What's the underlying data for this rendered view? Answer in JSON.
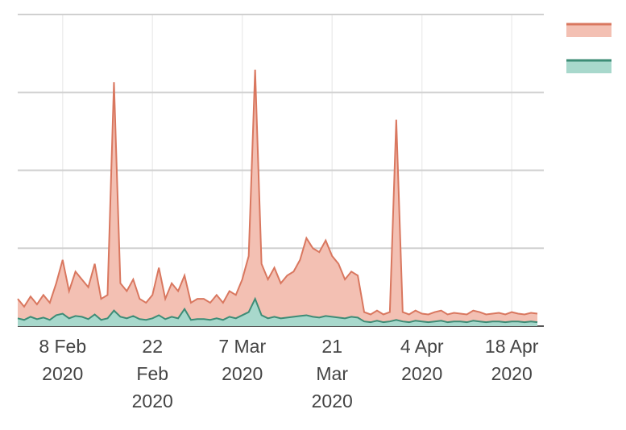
{
  "chart_data": {
    "type": "area",
    "x": [
      "2020-02-01",
      "2020-02-02",
      "2020-02-03",
      "2020-02-04",
      "2020-02-05",
      "2020-02-06",
      "2020-02-07",
      "2020-02-08",
      "2020-02-09",
      "2020-02-10",
      "2020-02-11",
      "2020-02-12",
      "2020-02-13",
      "2020-02-14",
      "2020-02-15",
      "2020-02-16",
      "2020-02-17",
      "2020-02-18",
      "2020-02-19",
      "2020-02-20",
      "2020-02-21",
      "2020-02-22",
      "2020-02-23",
      "2020-02-24",
      "2020-02-25",
      "2020-02-26",
      "2020-02-27",
      "2020-02-28",
      "2020-02-29",
      "2020-03-01",
      "2020-03-02",
      "2020-03-03",
      "2020-03-04",
      "2020-03-05",
      "2020-03-06",
      "2020-03-07",
      "2020-03-08",
      "2020-03-09",
      "2020-03-10",
      "2020-03-11",
      "2020-03-12",
      "2020-03-13",
      "2020-03-14",
      "2020-03-15",
      "2020-03-16",
      "2020-03-17",
      "2020-03-18",
      "2020-03-19",
      "2020-03-20",
      "2020-03-21",
      "2020-03-22",
      "2020-03-23",
      "2020-03-24",
      "2020-03-25",
      "2020-03-26",
      "2020-03-27",
      "2020-03-28",
      "2020-03-29",
      "2020-03-30",
      "2020-03-31",
      "2020-04-01",
      "2020-04-02",
      "2020-04-03",
      "2020-04-04",
      "2020-04-05",
      "2020-04-06",
      "2020-04-07",
      "2020-04-08",
      "2020-04-09",
      "2020-04-10",
      "2020-04-11",
      "2020-04-12",
      "2020-04-13",
      "2020-04-14",
      "2020-04-15",
      "2020-04-16",
      "2020-04-17",
      "2020-04-18",
      "2020-04-19",
      "2020-04-20",
      "2020-04-21",
      "2020-04-22"
    ],
    "series": [
      {
        "color": "#d9775f",
        "fill": "#f3c0b3",
        "values": [
          35,
          25,
          38,
          28,
          40,
          30,
          55,
          85,
          45,
          70,
          60,
          50,
          80,
          35,
          40,
          313,
          55,
          45,
          60,
          35,
          30,
          40,
          75,
          35,
          55,
          45,
          65,
          30,
          35,
          35,
          30,
          40,
          30,
          45,
          40,
          60,
          90,
          329,
          80,
          60,
          75,
          55,
          65,
          70,
          85,
          113,
          100,
          95,
          110,
          90,
          80,
          60,
          70,
          65,
          18,
          15,
          20,
          15,
          18,
          265,
          18,
          15,
          20,
          16,
          15,
          18,
          20,
          15,
          17,
          16,
          15,
          20,
          18,
          15,
          16,
          17,
          15,
          18,
          16,
          15,
          17,
          16
        ]
      },
      {
        "color": "#3d8c76",
        "fill": "#a8d8cc",
        "values": [
          10,
          8,
          12,
          9,
          11,
          8,
          14,
          16,
          10,
          13,
          12,
          9,
          15,
          8,
          10,
          20,
          12,
          10,
          13,
          9,
          8,
          10,
          14,
          9,
          12,
          10,
          22,
          8,
          9,
          9,
          8,
          10,
          8,
          12,
          10,
          14,
          18,
          35,
          14,
          10,
          12,
          10,
          11,
          12,
          13,
          14,
          12,
          11,
          13,
          12,
          11,
          10,
          12,
          11,
          6,
          5,
          7,
          5,
          6,
          8,
          6,
          5,
          7,
          6,
          5,
          6,
          7,
          5,
          6,
          6,
          5,
          7,
          6,
          5,
          6,
          6,
          5,
          6,
          6,
          5,
          6,
          5
        ]
      }
    ],
    "xlim": [
      "2020-02-01",
      "2020-04-23"
    ],
    "xticks": [
      {
        "value": "2020-02-08",
        "label": [
          "8 Feb",
          "2020"
        ]
      },
      {
        "value": "2020-02-22",
        "label": [
          "22",
          "Feb",
          "2020"
        ]
      },
      {
        "value": "2020-03-07",
        "label": [
          "7 Mar",
          "2020"
        ]
      },
      {
        "value": "2020-03-21",
        "label": [
          "21",
          "Mar",
          "2020"
        ]
      },
      {
        "value": "2020-04-04",
        "label": [
          "4 Apr",
          "2020"
        ]
      },
      {
        "value": "2020-04-18",
        "label": [
          "18 Apr",
          "2020"
        ]
      }
    ],
    "ylim": [
      0,
      400
    ],
    "yticks": [
      0,
      100,
      200,
      300,
      400
    ],
    "ytick_labels_shown": false,
    "grid": true,
    "legend": "top-right"
  }
}
